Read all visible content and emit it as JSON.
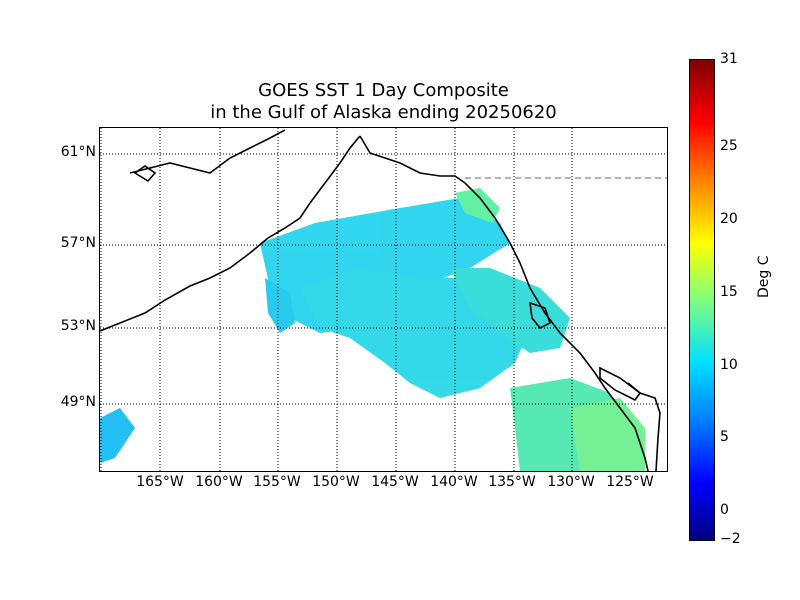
{
  "title": {
    "line1": "GOES SST 1 Day Composite",
    "line2": "in the Gulf of Alaska ending 20250620"
  },
  "map": {
    "lat_labels": [
      "61°N",
      "57°N",
      "53°N",
      "49°N"
    ],
    "lon_labels": [
      "165°W",
      "160°W",
      "155°W",
      "150°W",
      "145°W",
      "140°W",
      "135°W",
      "130°W",
      "125°W"
    ],
    "colors": {
      "sst_cool": "#1ec8f0",
      "sst_mid": "#2ee6c8",
      "sst_warm": "#5ff08c",
      "coastline": "#000000",
      "gridline": "#000000"
    }
  },
  "colorbar": {
    "label": "Deg C",
    "ticks": [
      "31",
      "25",
      "20",
      "15",
      "10",
      "5",
      "0",
      "−2"
    ],
    "min": -2,
    "max": 31,
    "colormap": "jet"
  }
}
